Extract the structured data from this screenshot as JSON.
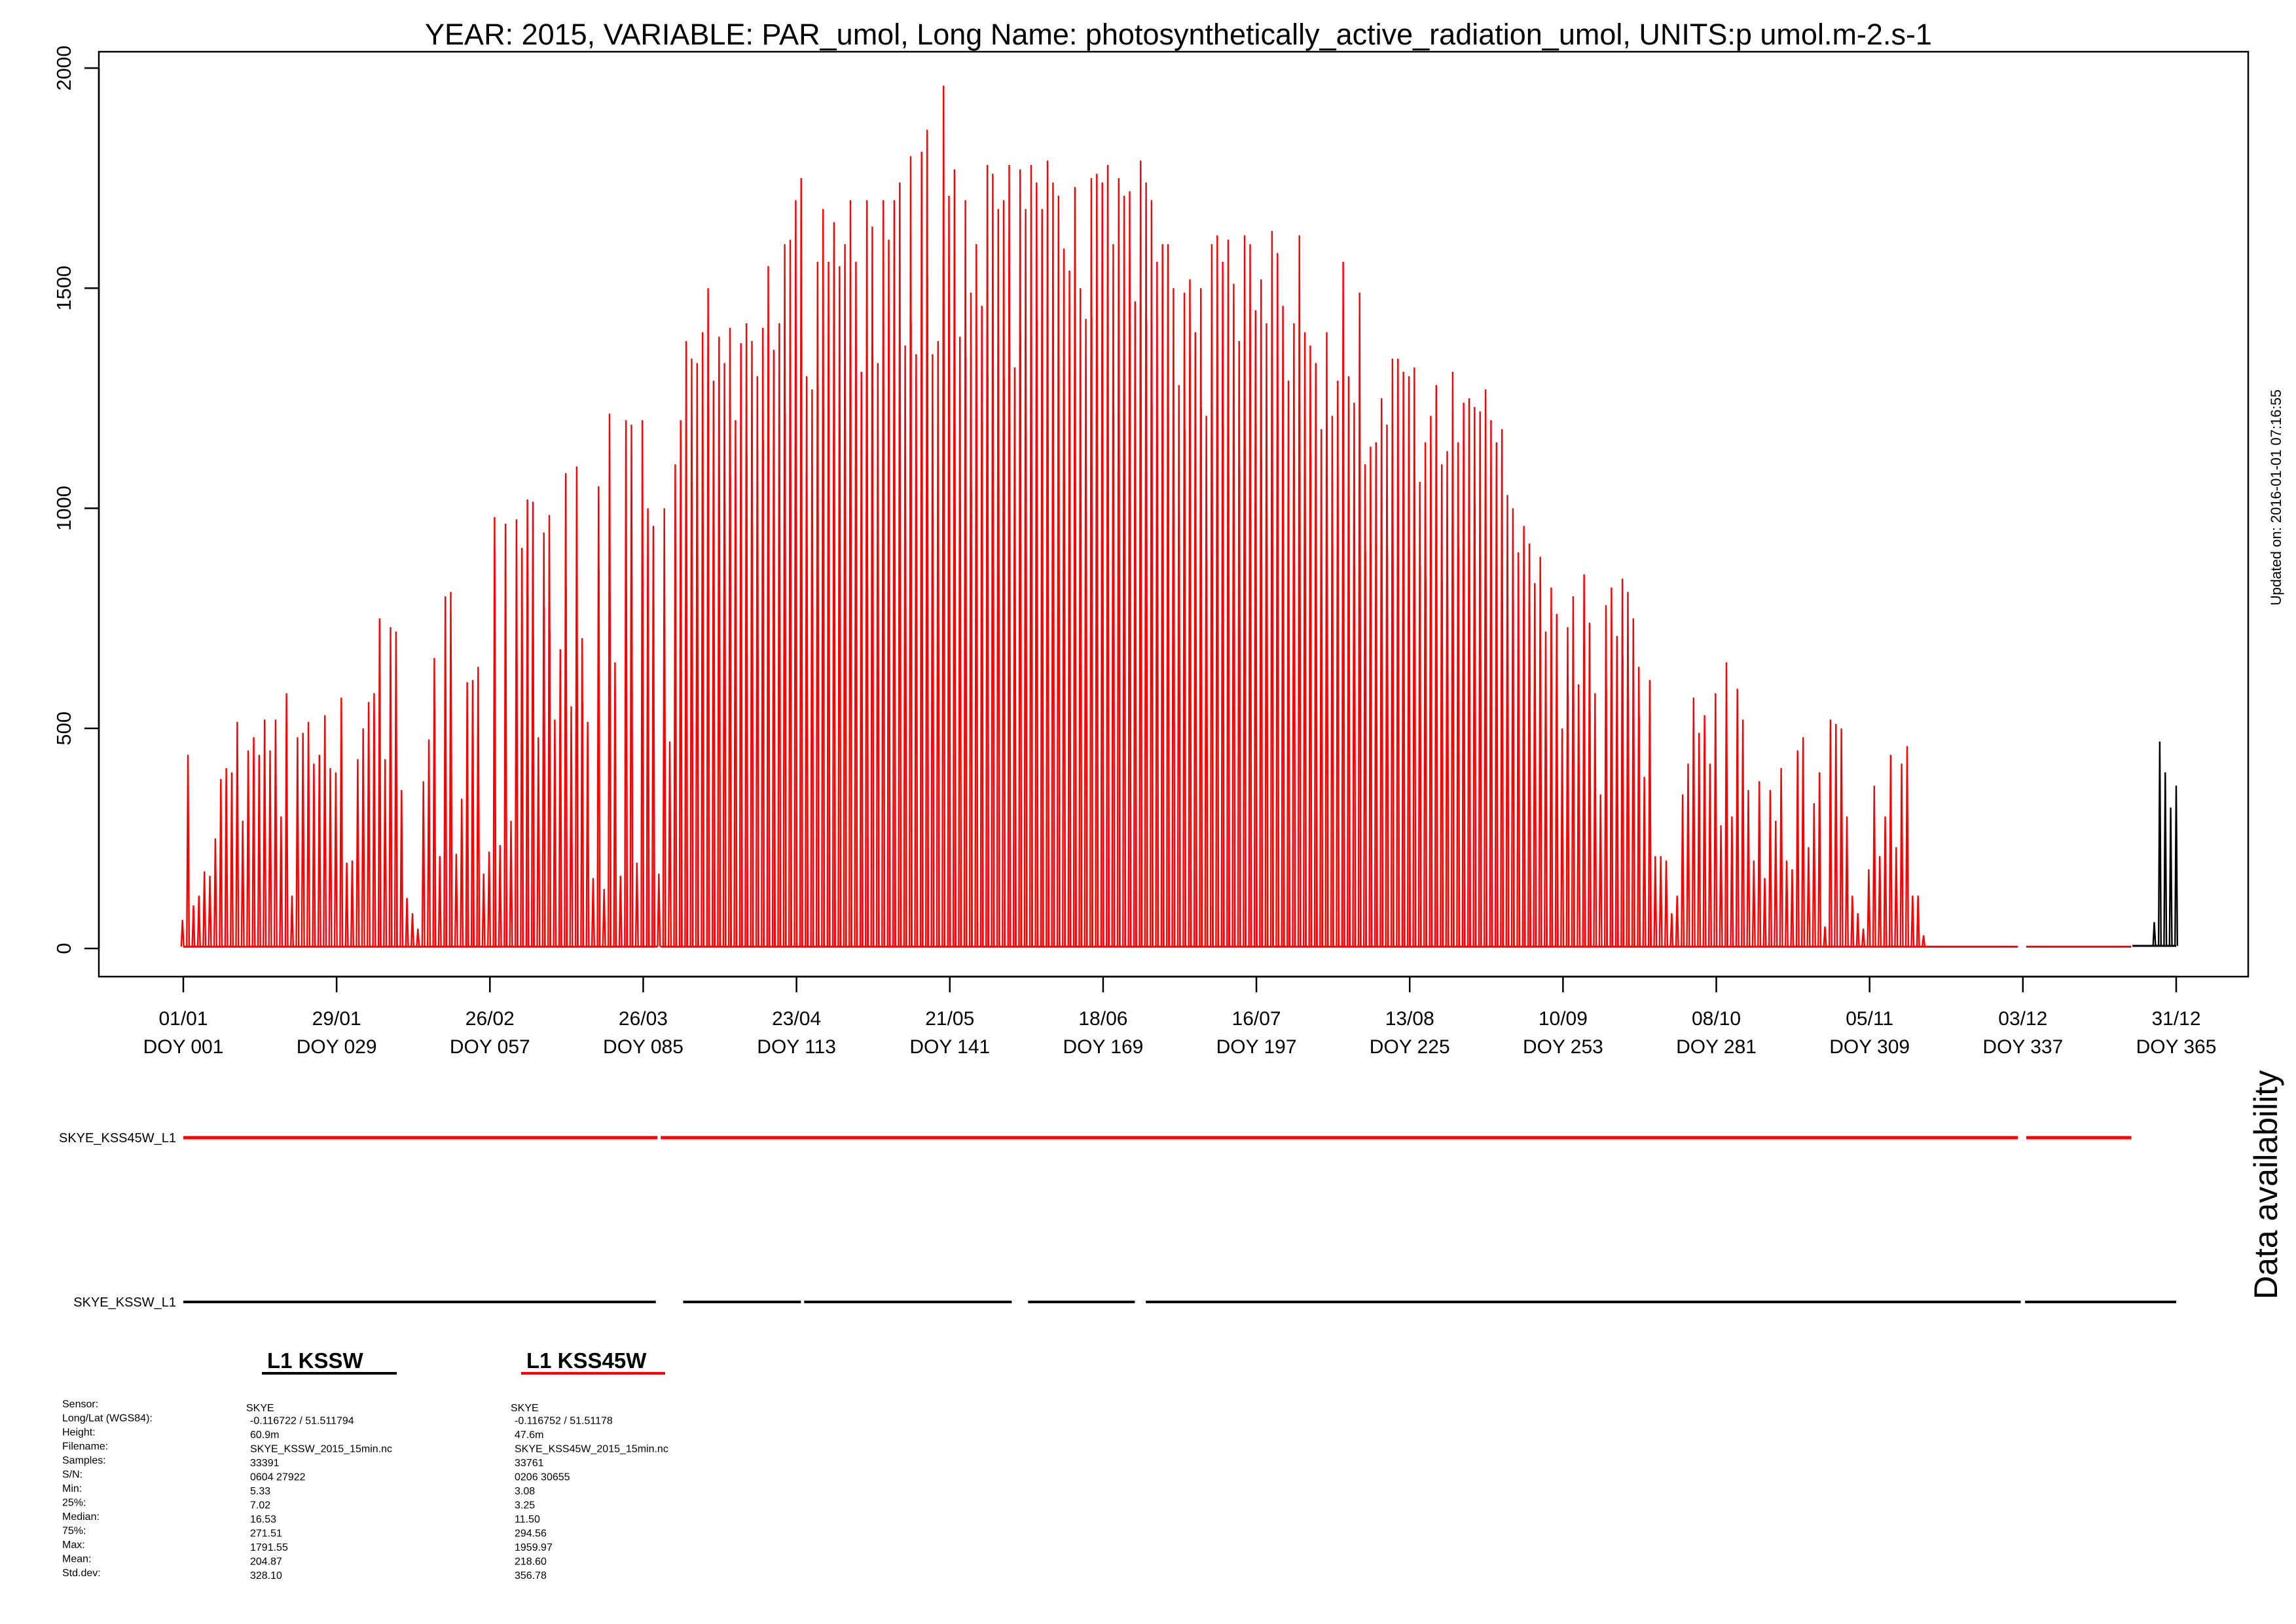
{
  "chart_data": {
    "type": "line",
    "title": "YEAR: 2015, VARIABLE: PAR_umol, Long Name: photosynthetically_active_radiation_umol, UNITS:p umol.m-2.s-1",
    "updated": "Updated on: 2016-01-01 07:16:55",
    "ylim": [
      -80,
      2040
    ],
    "xlim": [
      1,
      365
    ],
    "yticks": [
      "0",
      "500",
      "1000",
      "1500",
      "2000"
    ],
    "xticks": [
      {
        "date": "01/01",
        "doy": "DOY 001"
      },
      {
        "date": "29/01",
        "doy": "DOY 029"
      },
      {
        "date": "26/02",
        "doy": "DOY 057"
      },
      {
        "date": "26/03",
        "doy": "DOY 085"
      },
      {
        "date": "23/04",
        "doy": "DOY 113"
      },
      {
        "date": "21/05",
        "doy": "DOY 141"
      },
      {
        "date": "18/06",
        "doy": "DOY 169"
      },
      {
        "date": "16/07",
        "doy": "DOY 197"
      },
      {
        "date": "13/08",
        "doy": "DOY 225"
      },
      {
        "date": "10/09",
        "doy": "DOY 253"
      },
      {
        "date": "08/10",
        "doy": "DOY 281"
      },
      {
        "date": "05/11",
        "doy": "DOY 309"
      },
      {
        "date": "03/12",
        "doy": "DOY 337"
      },
      {
        "date": "31/12",
        "doy": "DOY 365"
      }
    ],
    "series": [
      {
        "name": "L1 KSS45W",
        "color": "#ff0000",
        "note": "daily maximum PAR (umol.m-2.s-1), day of year 1-365",
        "daily_max": [
          65,
          440,
          98,
          120,
          175,
          165,
          250,
          385,
          410,
          400,
          515,
          290,
          450,
          480,
          440,
          520,
          450,
          520,
          300,
          580,
          120,
          480,
          490,
          515,
          420,
          440,
          530,
          410,
          400,
          570,
          195,
          200,
          430,
          500,
          560,
          580,
          750,
          430,
          730,
          720,
          360,
          115,
          80,
          45,
          380,
          475,
          660,
          210,
          800,
          810,
          215,
          340,
          605,
          610,
          640,
          170,
          220,
          980,
          235,
          965,
          290,
          975,
          910,
          1020,
          1015,
          480,
          945,
          985,
          520,
          680,
          1080,
          550,
          1095,
          705,
          515,
          160,
          1050,
          135,
          1215,
          650,
          165,
          1200,
          1190,
          195,
          1200,
          1000,
          960,
          170,
          1000,
          470,
          1100,
          1200,
          1380,
          1340,
          1330,
          1400,
          1500,
          1290,
          1390,
          1330,
          1410,
          1200,
          1375,
          1420,
          1380,
          1300,
          1410,
          1550,
          1360,
          1420,
          1600,
          1610,
          1700,
          1750,
          1300,
          1270,
          1560,
          1680,
          1560,
          1650,
          1550,
          1600,
          1700,
          1560,
          1310,
          1700,
          1640,
          1330,
          1700,
          1610,
          1700,
          1740,
          1370,
          1800,
          1350,
          1810,
          1860,
          1350,
          1380,
          1960,
          1710,
          1770,
          1390,
          1700,
          1490,
          1600,
          1460,
          1780,
          1760,
          1680,
          1700,
          1780,
          1320,
          1770,
          1680,
          1780,
          1740,
          1680,
          1790,
          1740,
          1710,
          1590,
          1540,
          1730,
          1500,
          1430,
          1750,
          1760,
          1740,
          1780,
          1600,
          1750,
          1710,
          1720,
          1470,
          1790,
          1740,
          1700,
          1560,
          1600,
          1600,
          1500,
          1280,
          1490,
          1520,
          1400,
          1500,
          1210,
          1600,
          1620,
          1560,
          1610,
          1510,
          1380,
          1620,
          1600,
          1450,
          1520,
          1420,
          1630,
          1580,
          1460,
          1290,
          1420,
          1620,
          1400,
          1370,
          1330,
          1180,
          1400,
          1210,
          1290,
          1560,
          1300,
          1240,
          1490,
          1100,
          1140,
          1150,
          1250,
          1190,
          1340,
          1340,
          1310,
          1300,
          1320,
          1060,
          1150,
          1210,
          1280,
          1100,
          1130,
          1310,
          1150,
          1240,
          1250,
          1230,
          1220,
          1270,
          1200,
          1150,
          1180,
          1030,
          1000,
          900,
          960,
          920,
          830,
          890,
          720,
          820,
          760,
          500,
          730,
          800,
          600,
          850,
          740,
          580,
          350,
          780,
          820,
          710,
          840,
          810,
          750,
          640,
          390,
          610,
          210,
          210,
          200,
          80,
          120,
          350,
          420,
          570,
          490,
          530,
          420,
          580,
          280,
          650,
          300,
          590,
          520,
          360,
          200,
          380,
          160,
          360,
          290,
          410,
          200,
          180,
          450,
          480,
          230,
          330,
          400,
          50,
          520,
          510,
          500,
          300,
          120,
          80,
          45,
          180,
          370,
          210,
          300,
          440,
          230,
          420,
          460,
          120,
          120,
          30
        ]
      },
      {
        "name": "L1 KSSW",
        "color": "#000000",
        "note": "visible at the end of the year where the red series has no data",
        "tail_days": [
          361,
          362,
          363,
          364,
          365
        ],
        "tail_values": [
          60,
          470,
          400,
          320,
          370
        ]
      }
    ],
    "availability": {
      "title": "Data availability",
      "rows": [
        {
          "label": "SKYE_KSS45W_L1",
          "color": "#ff0000",
          "ranges": [
            [
              1,
              87.6
            ],
            [
              88.2,
              336.1
            ],
            [
              337.6,
              356.8
            ]
          ]
        },
        {
          "label": "SKYE_KSSW_L1",
          "color": "#000000",
          "ranges": [
            [
              1,
              87.3
            ],
            [
              92.3,
              113.8
            ],
            [
              114.4,
              152.3
            ],
            [
              155.3,
              174.8
            ],
            [
              176.8,
              336.6
            ],
            [
              337.4,
              365
            ]
          ]
        }
      ]
    },
    "stats": {
      "row_labels": [
        "Sensor:",
        "Long/Lat (WGS84):",
        "Height:",
        "Filename:",
        "Samples:",
        "S/N:",
        "Min:",
        "25%:",
        "Median:",
        "75%:",
        "Max:",
        "Mean:",
        "Std.dev:"
      ],
      "columns": [
        {
          "title": "L1 KSSW",
          "underline_color": "#000000",
          "values": [
            "SKYE",
            "-0.116722 / 51.511794",
            "60.9m",
            "SKYE_KSSW_2015_15min.nc",
            "33391",
            "0604 27922",
            "5.33",
            "7.02",
            "16.53",
            "271.51",
            "1791.55",
            "204.87",
            "328.10"
          ]
        },
        {
          "title": "L1 KSS45W",
          "underline_color": "#ff0000",
          "values": [
            "SKYE",
            "-0.116752 / 51.51178",
            "47.6m",
            "SKYE_KSS45W_2015_15min.nc",
            "33761",
            "0206 30655",
            "3.08",
            "3.25",
            "11.50",
            "294.56",
            "1959.97",
            "218.60",
            "356.78"
          ]
        }
      ]
    }
  }
}
